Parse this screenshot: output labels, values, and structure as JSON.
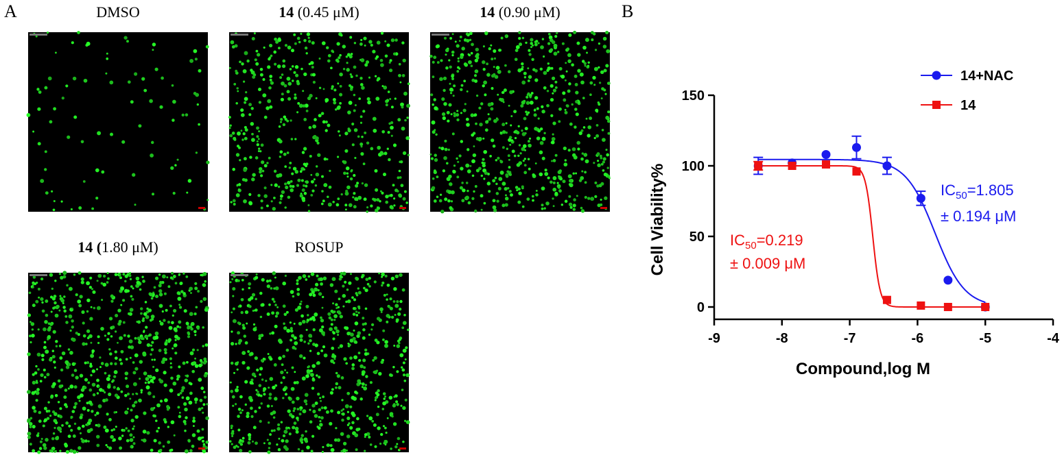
{
  "panels": {
    "A": {
      "letter": "A"
    },
    "B": {
      "letter": "B"
    }
  },
  "images": [
    {
      "bold": "",
      "label": "DMSO",
      "density": 90
    },
    {
      "bold": "14",
      "label": " (0.45 μM)",
      "density": 520
    },
    {
      "bold": "14",
      "label": " (0.90 μM)",
      "density": 640
    },
    {
      "bold": "14 (",
      "label": "1.80 μM)",
      "density": 760
    },
    {
      "bold": "",
      "label": "ROSUP",
      "density": 700
    }
  ],
  "colors": {
    "cells": "#22dd22",
    "nac": "#1a1aee",
    "compound": "#ee1111"
  },
  "chart_data": {
    "type": "scatter",
    "xlabel": "Compound,log M",
    "ylabel": "Cell Viability%",
    "xlim": [
      -9,
      -4
    ],
    "ylim": [
      0,
      150
    ],
    "xticks": [
      "-9",
      "-8",
      "-7",
      "-6",
      "-5",
      "-4"
    ],
    "yticks": [
      "0",
      "50",
      "100",
      "150"
    ],
    "legend_position": "top-right",
    "series": [
      {
        "name": "14+NAC",
        "marker": "circle",
        "x": [
          -8.35,
          -7.85,
          -7.35,
          -6.9,
          -6.45,
          -5.95,
          -5.55,
          -5.0
        ],
        "y": [
          100,
          102,
          108,
          113,
          100,
          77,
          19,
          0
        ],
        "err": [
          6,
          0,
          0,
          8,
          6,
          5,
          0,
          0
        ],
        "fit": {
          "top": 104.5,
          "bottom": 0,
          "log_ic50": -5.74,
          "hill": -2.0
        }
      },
      {
        "name": "14",
        "marker": "square",
        "x": [
          -8.35,
          -7.85,
          -7.35,
          -6.9,
          -6.45,
          -5.95,
          -5.55,
          -5.0
        ],
        "y": [
          100,
          100,
          101,
          96,
          5,
          1,
          0,
          0
        ],
        "err": [
          3,
          0,
          0,
          0,
          0,
          0,
          0,
          0
        ],
        "fit": {
          "top": 100,
          "bottom": 0,
          "log_ic50": -6.66,
          "hill": -8.0
        }
      }
    ],
    "annotations": [
      {
        "sub_pre": "IC",
        "sub": "50",
        "text": "=1.805",
        "line2": "± 0.194 μM",
        "color": "nac"
      },
      {
        "sub_pre": "IC",
        "sub": "50",
        "text": "=0.219",
        "line2": "± 0.009 μM",
        "color": "compound"
      }
    ]
  }
}
